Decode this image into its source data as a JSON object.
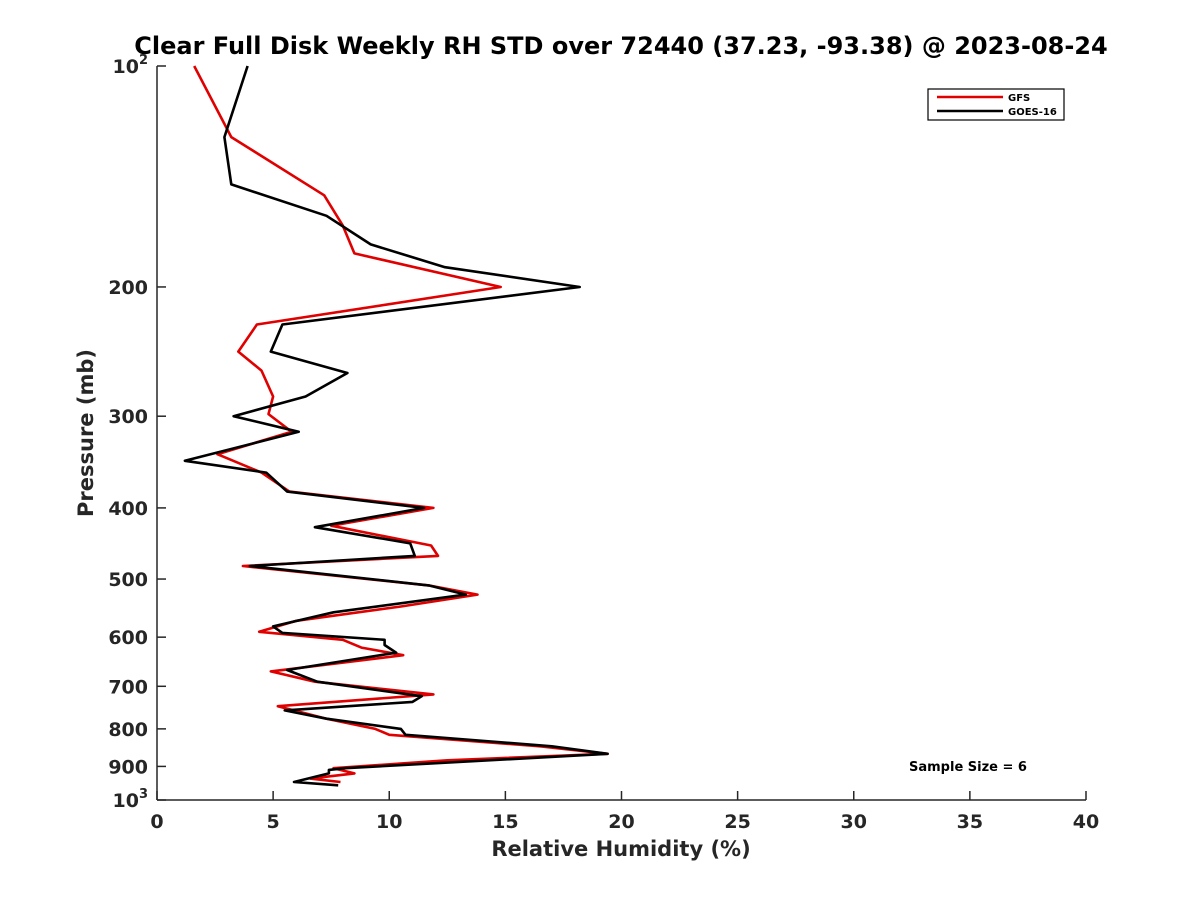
{
  "chart_data": {
    "type": "line",
    "title": "Clear Full Disk Weekly RH STD over 72440 (37.23, -93.38) @ 2023-08-24",
    "xlabel": "Relative Humidity (%)",
    "ylabel": "Pressure (mb)",
    "xlim": [
      0,
      40
    ],
    "ylim": [
      100,
      1000
    ],
    "y_scale": "log",
    "y_reversed": true,
    "grid": false,
    "legend_position": "top-right",
    "x_ticks": [
      0,
      5,
      10,
      15,
      20,
      25,
      30,
      35,
      40
    ],
    "x_tick_labels": [
      "0",
      "5",
      "10",
      "15",
      "20",
      "25",
      "30",
      "35",
      "40"
    ],
    "y_ticks": [
      100,
      200,
      300,
      400,
      500,
      600,
      700,
      800,
      900,
      1000
    ],
    "y_tick_labels": [
      {
        "base": "10",
        "sup": "2"
      },
      {
        "base": "200",
        "sup": ""
      },
      {
        "base": "300",
        "sup": ""
      },
      {
        "base": "400",
        "sup": ""
      },
      {
        "base": "500",
        "sup": ""
      },
      {
        "base": "600",
        "sup": ""
      },
      {
        "base": "700",
        "sup": ""
      },
      {
        "base": "800",
        "sup": ""
      },
      {
        "base": "900",
        "sup": ""
      },
      {
        "base": "10",
        "sup": "3"
      }
    ],
    "annotation": "Sample Size = 6",
    "series": [
      {
        "name": "GFS",
        "color": "#e00000",
        "points": [
          [
            1.6,
            100
          ],
          [
            3.2,
            125
          ],
          [
            7.2,
            150
          ],
          [
            8.0,
            165
          ],
          [
            8.5,
            180
          ],
          [
            14.8,
            200
          ],
          [
            4.3,
            225
          ],
          [
            3.5,
            245
          ],
          [
            4.5,
            260
          ],
          [
            5.0,
            282
          ],
          [
            4.8,
            298
          ],
          [
            5.8,
            315
          ],
          [
            2.6,
            338
          ],
          [
            4.5,
            358
          ],
          [
            5.7,
            380
          ],
          [
            11.9,
            400
          ],
          [
            7.5,
            423
          ],
          [
            11.8,
            450
          ],
          [
            12.1,
            465
          ],
          [
            3.7,
            480
          ],
          [
            11.7,
            510
          ],
          [
            13.8,
            525
          ],
          [
            10.5,
            545
          ],
          [
            6.0,
            570
          ],
          [
            4.4,
            590
          ],
          [
            8.0,
            605
          ],
          [
            8.8,
            620
          ],
          [
            10.6,
            635
          ],
          [
            4.9,
            668
          ],
          [
            6.8,
            690
          ],
          [
            11.9,
            718
          ],
          [
            5.2,
            745
          ],
          [
            7.3,
            775
          ],
          [
            9.4,
            800
          ],
          [
            10.0,
            815
          ],
          [
            16.5,
            845
          ],
          [
            19.4,
            865
          ],
          [
            12.5,
            883
          ],
          [
            7.6,
            905
          ],
          [
            8.5,
            920
          ],
          [
            6.6,
            935
          ],
          [
            7.9,
            945
          ]
        ]
      },
      {
        "name": "GOES-16",
        "color": "#000000",
        "points": [
          [
            3.9,
            100
          ],
          [
            2.9,
            125
          ],
          [
            3.2,
            145
          ],
          [
            7.3,
            160
          ],
          [
            9.2,
            175
          ],
          [
            12.4,
            188
          ],
          [
            18.2,
            200
          ],
          [
            5.4,
            225
          ],
          [
            4.9,
            245
          ],
          [
            8.2,
            262
          ],
          [
            6.4,
            282
          ],
          [
            3.3,
            300
          ],
          [
            6.1,
            315
          ],
          [
            1.2,
            345
          ],
          [
            4.7,
            358
          ],
          [
            5.6,
            380
          ],
          [
            11.5,
            400
          ],
          [
            6.8,
            425
          ],
          [
            10.9,
            447
          ],
          [
            11.1,
            465
          ],
          [
            4.0,
            480
          ],
          [
            11.7,
            510
          ],
          [
            13.3,
            525
          ],
          [
            7.6,
            555
          ],
          [
            5.0,
            580
          ],
          [
            5.4,
            592
          ],
          [
            9.8,
            605
          ],
          [
            9.8,
            615
          ],
          [
            10.3,
            630
          ],
          [
            5.6,
            665
          ],
          [
            6.9,
            690
          ],
          [
            11.4,
            722
          ],
          [
            11.0,
            735
          ],
          [
            5.5,
            755
          ],
          [
            7.3,
            775
          ],
          [
            10.5,
            800
          ],
          [
            10.7,
            815
          ],
          [
            17.0,
            845
          ],
          [
            19.4,
            865
          ],
          [
            8.1,
            905
          ],
          [
            7.4,
            910
          ],
          [
            7.4,
            920
          ],
          [
            5.9,
            945
          ],
          [
            7.8,
            955
          ]
        ]
      }
    ]
  }
}
